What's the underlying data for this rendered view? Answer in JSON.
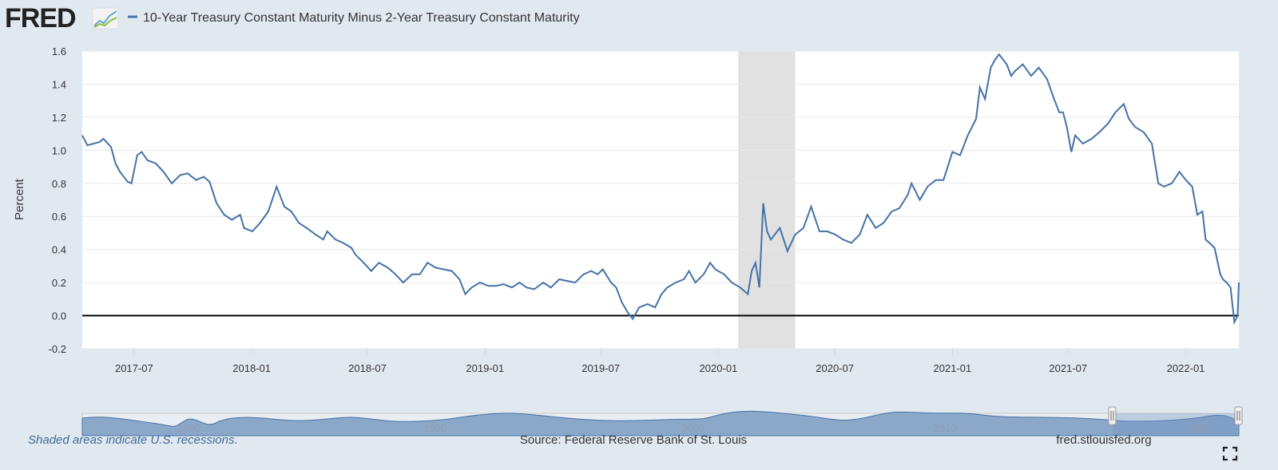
{
  "header": {
    "logo_text": "FRED",
    "series_title": "10-Year Treasury Constant Maturity Minus 2-Year Treasury Constant Maturity"
  },
  "footer": {
    "recession_note": "Shaded areas indicate U.S. recessions.",
    "source": "Source: Federal Reserve Bank of St. Louis",
    "site": "fred.stlouisfed.org",
    "fullscreen_icon": "fullscreen-icon"
  },
  "colors": {
    "line": "#4572a7",
    "recession": "#e1e1e1",
    "background": "#e1e9f0",
    "zero_line": "#000000"
  },
  "chart_data": {
    "type": "line",
    "title": "",
    "xlabel": "",
    "ylabel": "Percent",
    "ylim": [
      -0.2,
      1.6
    ],
    "xlim": [
      "2017-04-11",
      "2022-03-25"
    ],
    "grid": "horizontal",
    "legend": "top-left",
    "yticks": [
      "-0.2",
      "0.0",
      "0.2",
      "0.4",
      "0.6",
      "0.8",
      "1.0",
      "1.2",
      "1.4",
      "1.6"
    ],
    "xticks": [
      "2017-07",
      "2018-01",
      "2018-07",
      "2019-01",
      "2019-07",
      "2020-01",
      "2020-07",
      "2021-01",
      "2021-07",
      "2022-01"
    ],
    "recessions": [
      [
        "2020-02-01",
        "2020-04-30"
      ]
    ],
    "navigator_labels": [
      "1980",
      "1990",
      "2000",
      "2010",
      "2020"
    ],
    "series": [
      {
        "name": "10-Year Treasury Constant Maturity Minus 2-Year Treasury Constant Maturity",
        "x": [
          "2017-04-11",
          "2017-04-19",
          "2017-05-08",
          "2017-05-14",
          "2017-05-26",
          "2017-06-02",
          "2017-06-09",
          "2017-06-21",
          "2017-06-27",
          "2017-07-06",
          "2017-07-13",
          "2017-07-22",
          "2017-08-04",
          "2017-08-16",
          "2017-08-29",
          "2017-09-11",
          "2017-09-23",
          "2017-10-06",
          "2017-10-18",
          "2017-10-27",
          "2017-11-07",
          "2017-11-19",
          "2017-12-01",
          "2017-12-14",
          "2017-12-20",
          "2018-01-02",
          "2018-01-14",
          "2018-01-27",
          "2018-02-09",
          "2018-02-21",
          "2018-03-04",
          "2018-03-16",
          "2018-03-28",
          "2018-04-11",
          "2018-04-23",
          "2018-04-29",
          "2018-05-12",
          "2018-05-24",
          "2018-06-06",
          "2018-06-12",
          "2018-06-25",
          "2018-07-07",
          "2018-07-19",
          "2018-08-02",
          "2018-08-14",
          "2018-08-26",
          "2018-09-09",
          "2018-09-21",
          "2018-10-03",
          "2018-10-16",
          "2018-10-28",
          "2018-11-10",
          "2018-11-22",
          "2018-12-01",
          "2018-12-11",
          "2018-12-24",
          "2019-01-06",
          "2019-01-18",
          "2019-01-30",
          "2019-02-12",
          "2019-02-24",
          "2019-03-07",
          "2019-03-19",
          "2019-04-02",
          "2019-04-14",
          "2019-04-27",
          "2019-05-09",
          "2019-05-22",
          "2019-06-04",
          "2019-06-16",
          "2019-06-26",
          "2019-07-04",
          "2019-07-17",
          "2019-07-25",
          "2019-08-03",
          "2019-08-12",
          "2019-08-20",
          "2019-08-30",
          "2019-09-12",
          "2019-09-24",
          "2019-10-04",
          "2019-10-13",
          "2019-10-26",
          "2019-11-08",
          "2019-11-16",
          "2019-11-26",
          "2019-12-09",
          "2019-12-19",
          "2019-12-27",
          "2020-01-10",
          "2020-01-22",
          "2020-02-04",
          "2020-02-16",
          "2020-02-22",
          "2020-02-28",
          "2020-03-05",
          "2020-03-11",
          "2020-03-17",
          "2020-03-23",
          "2020-04-06",
          "2020-04-18",
          "2020-04-30",
          "2020-05-13",
          "2020-05-25",
          "2020-06-07",
          "2020-06-19",
          "2020-07-02",
          "2020-07-14",
          "2020-07-27",
          "2020-08-09",
          "2020-08-21",
          "2020-09-03",
          "2020-09-15",
          "2020-09-28",
          "2020-10-10",
          "2020-10-23",
          "2020-10-29",
          "2020-11-11",
          "2020-11-23",
          "2020-12-06",
          "2020-12-18",
          "2021-01-01",
          "2021-01-13",
          "2021-01-25",
          "2021-02-07",
          "2021-02-13",
          "2021-02-21",
          "2021-03-02",
          "2021-03-09",
          "2021-03-15",
          "2021-03-21",
          "2021-03-27",
          "2021-04-03",
          "2021-04-09",
          "2021-04-21",
          "2021-05-04",
          "2021-05-16",
          "2021-05-29",
          "2021-06-09",
          "2021-06-17",
          "2021-06-23",
          "2021-06-29",
          "2021-07-06",
          "2021-07-12",
          "2021-07-24",
          "2021-08-07",
          "2021-08-19",
          "2021-09-01",
          "2021-09-13",
          "2021-09-26",
          "2021-10-04",
          "2021-10-14",
          "2021-10-27",
          "2021-11-09",
          "2021-11-19",
          "2021-11-28",
          "2021-12-10",
          "2021-12-22",
          "2022-01-01",
          "2022-01-11",
          "2022-01-19",
          "2022-01-27",
          "2022-02-01",
          "2022-02-07",
          "2022-02-15",
          "2022-02-24",
          "2022-02-28",
          "2022-03-06",
          "2022-03-12",
          "2022-03-18",
          "2022-03-23",
          "2022-03-25"
        ],
        "values": [
          1.09,
          1.03,
          1.05,
          1.07,
          1.02,
          0.92,
          0.87,
          0.81,
          0.8,
          0.97,
          0.99,
          0.94,
          0.92,
          0.87,
          0.8,
          0.85,
          0.86,
          0.82,
          0.84,
          0.81,
          0.68,
          0.61,
          0.58,
          0.61,
          0.53,
          0.51,
          0.56,
          0.63,
          0.78,
          0.66,
          0.63,
          0.56,
          0.53,
          0.49,
          0.46,
          0.51,
          0.46,
          0.44,
          0.41,
          0.37,
          0.32,
          0.27,
          0.32,
          0.29,
          0.25,
          0.2,
          0.25,
          0.25,
          0.32,
          0.29,
          0.28,
          0.27,
          0.22,
          0.13,
          0.17,
          0.2,
          0.18,
          0.18,
          0.19,
          0.17,
          0.2,
          0.17,
          0.16,
          0.2,
          0.17,
          0.22,
          0.21,
          0.2,
          0.25,
          0.27,
          0.25,
          0.28,
          0.2,
          0.17,
          0.08,
          0.02,
          -0.02,
          0.05,
          0.07,
          0.05,
          0.13,
          0.17,
          0.2,
          0.22,
          0.27,
          0.2,
          0.25,
          0.32,
          0.28,
          0.25,
          0.2,
          0.17,
          0.13,
          0.27,
          0.32,
          0.17,
          0.68,
          0.51,
          0.46,
          0.53,
          0.39,
          0.49,
          0.53,
          0.66,
          0.51,
          0.51,
          0.49,
          0.46,
          0.44,
          0.49,
          0.61,
          0.53,
          0.56,
          0.63,
          0.65,
          0.73,
          0.8,
          0.7,
          0.78,
          0.82,
          0.82,
          0.99,
          0.97,
          1.09,
          1.19,
          1.38,
          1.31,
          1.5,
          1.55,
          1.58,
          1.55,
          1.52,
          1.45,
          1.48,
          1.52,
          1.45,
          1.5,
          1.43,
          1.31,
          1.23,
          1.23,
          1.14,
          0.99,
          1.09,
          1.04,
          1.07,
          1.11,
          1.16,
          1.23,
          1.28,
          1.19,
          1.14,
          1.11,
          1.04,
          0.8,
          0.78,
          0.8,
          0.87,
          0.82,
          0.78,
          0.61,
          0.63,
          0.46,
          0.44,
          0.41,
          0.25,
          0.22,
          0.2,
          0.17,
          -0.04,
          0.0,
          0.2
        ]
      }
    ]
  }
}
